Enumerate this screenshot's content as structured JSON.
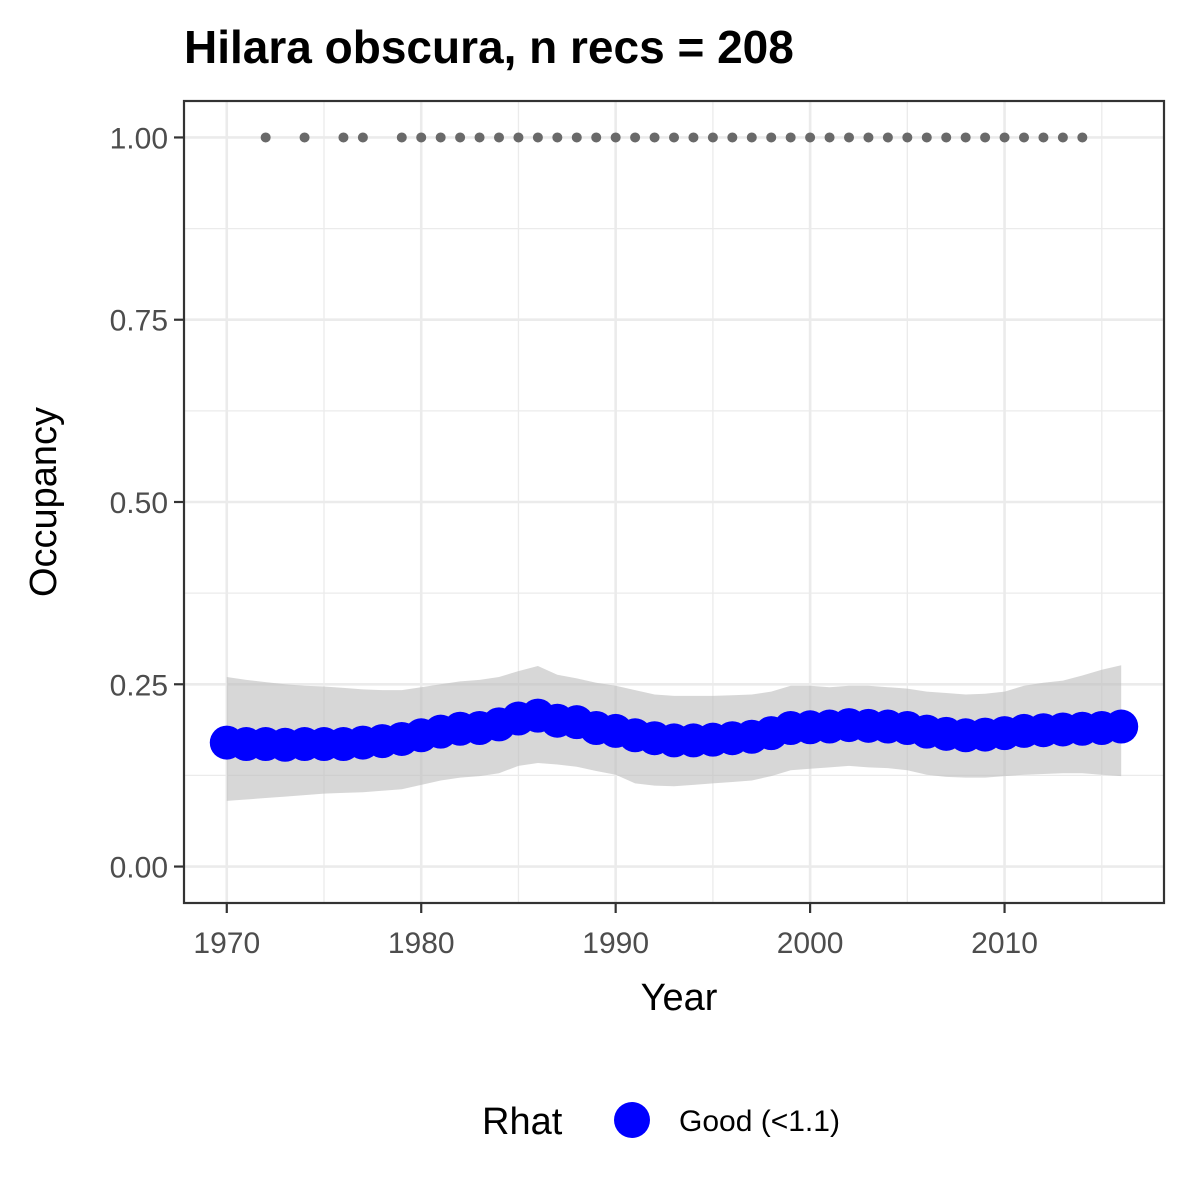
{
  "chart_data": {
    "type": "line",
    "title": "Hilara obscura, n recs = 208",
    "xlabel": "Year",
    "ylabel": "Occupancy",
    "xlim": [
      1967.8,
      2018.2
    ],
    "ylim": [
      -0.05,
      1.05
    ],
    "x_ticks": [
      1970,
      1980,
      1990,
      2000,
      2010
    ],
    "x_tick_labels": [
      "1970",
      "1980",
      "1990",
      "2000",
      "2010"
    ],
    "y_ticks": [
      0,
      0.25,
      0.5,
      0.75,
      1
    ],
    "y_tick_labels": [
      "0.00",
      "0.25",
      "0.50",
      "0.75",
      "1.00"
    ],
    "grid": true,
    "series": [
      {
        "kind": "points-with-ribbon",
        "color": "#0000ff",
        "x": [
          1970,
          1971,
          1972,
          1973,
          1974,
          1975,
          1976,
          1977,
          1978,
          1979,
          1980,
          1981,
          1982,
          1983,
          1984,
          1985,
          1986,
          1987,
          1988,
          1989,
          1990,
          1991,
          1992,
          1993,
          1994,
          1995,
          1996,
          1997,
          1998,
          1999,
          2000,
          2001,
          2002,
          2003,
          2004,
          2005,
          2006,
          2007,
          2008,
          2009,
          2010,
          2011,
          2012,
          2013,
          2014,
          2015,
          2016
        ],
        "y": [
          0.17,
          0.168,
          0.168,
          0.167,
          0.168,
          0.168,
          0.168,
          0.17,
          0.172,
          0.175,
          0.18,
          0.185,
          0.189,
          0.19,
          0.195,
          0.203,
          0.207,
          0.2,
          0.198,
          0.19,
          0.186,
          0.18,
          0.176,
          0.173,
          0.173,
          0.174,
          0.176,
          0.178,
          0.183,
          0.19,
          0.191,
          0.192,
          0.194,
          0.193,
          0.192,
          0.19,
          0.185,
          0.182,
          0.18,
          0.181,
          0.183,
          0.186,
          0.187,
          0.188,
          0.189,
          0.19,
          0.192
        ],
        "lower": [
          0.09,
          0.092,
          0.094,
          0.096,
          0.098,
          0.1,
          0.101,
          0.102,
          0.104,
          0.106,
          0.112,
          0.118,
          0.122,
          0.124,
          0.128,
          0.138,
          0.142,
          0.14,
          0.137,
          0.131,
          0.126,
          0.114,
          0.111,
          0.11,
          0.112,
          0.114,
          0.116,
          0.118,
          0.124,
          0.132,
          0.134,
          0.136,
          0.138,
          0.136,
          0.135,
          0.132,
          0.126,
          0.123,
          0.122,
          0.122,
          0.124,
          0.126,
          0.127,
          0.128,
          0.128,
          0.126,
          0.124
        ],
        "upper": [
          0.26,
          0.256,
          0.253,
          0.25,
          0.248,
          0.247,
          0.245,
          0.243,
          0.242,
          0.242,
          0.246,
          0.25,
          0.254,
          0.256,
          0.26,
          0.268,
          0.275,
          0.263,
          0.258,
          0.252,
          0.248,
          0.242,
          0.236,
          0.234,
          0.234,
          0.234,
          0.235,
          0.236,
          0.24,
          0.248,
          0.248,
          0.246,
          0.248,
          0.248,
          0.246,
          0.244,
          0.24,
          0.238,
          0.236,
          0.237,
          0.24,
          0.248,
          0.252,
          0.255,
          0.262,
          0.27,
          0.276
        ]
      },
      {
        "kind": "record-years",
        "color": "#696969",
        "x": [
          1972,
          1974,
          1976,
          1977,
          1979,
          1980,
          1981,
          1982,
          1983,
          1984,
          1985,
          1986,
          1987,
          1988,
          1989,
          1990,
          1991,
          1992,
          1993,
          1994,
          1995,
          1996,
          1997,
          1998,
          1999,
          2000,
          2001,
          2002,
          2003,
          2004,
          2005,
          2006,
          2007,
          2008,
          2009,
          2010,
          2011,
          2012,
          2013,
          2014
        ],
        "y": 1.0
      }
    ],
    "legend": {
      "title": "Rhat",
      "position": "bottom",
      "entries": [
        {
          "label": "Good (<1.1)",
          "color": "#0000ff"
        }
      ]
    }
  }
}
